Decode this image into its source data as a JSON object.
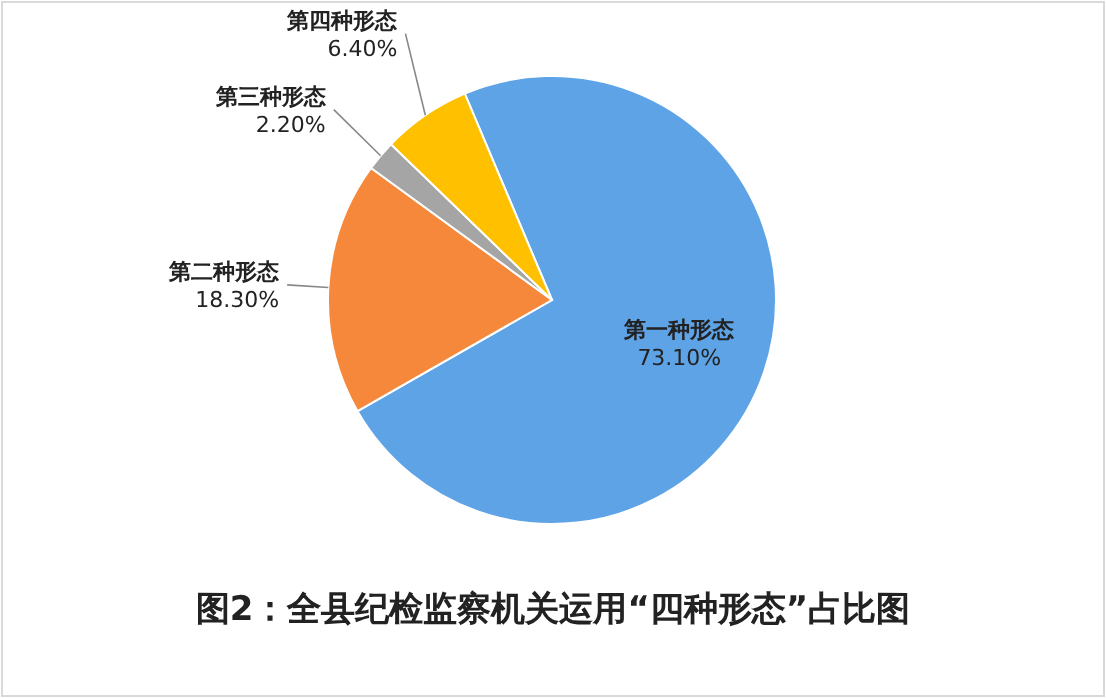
{
  "chart_data": {
    "type": "pie",
    "title": "图2：全县纪检监察机关运用“四种形态”占比图",
    "categories": [
      "第一种形态",
      "第二种形态",
      "第三种形态",
      "第四种形态"
    ],
    "values": [
      73.1,
      18.3,
      2.2,
      6.4
    ],
    "value_labels": [
      "73.10%",
      "18.30%",
      "2.20%",
      "6.40%"
    ],
    "colors": [
      "#5ea3e6",
      "#f5883a",
      "#a5a5a5",
      "#ffc000"
    ],
    "legend": false
  }
}
